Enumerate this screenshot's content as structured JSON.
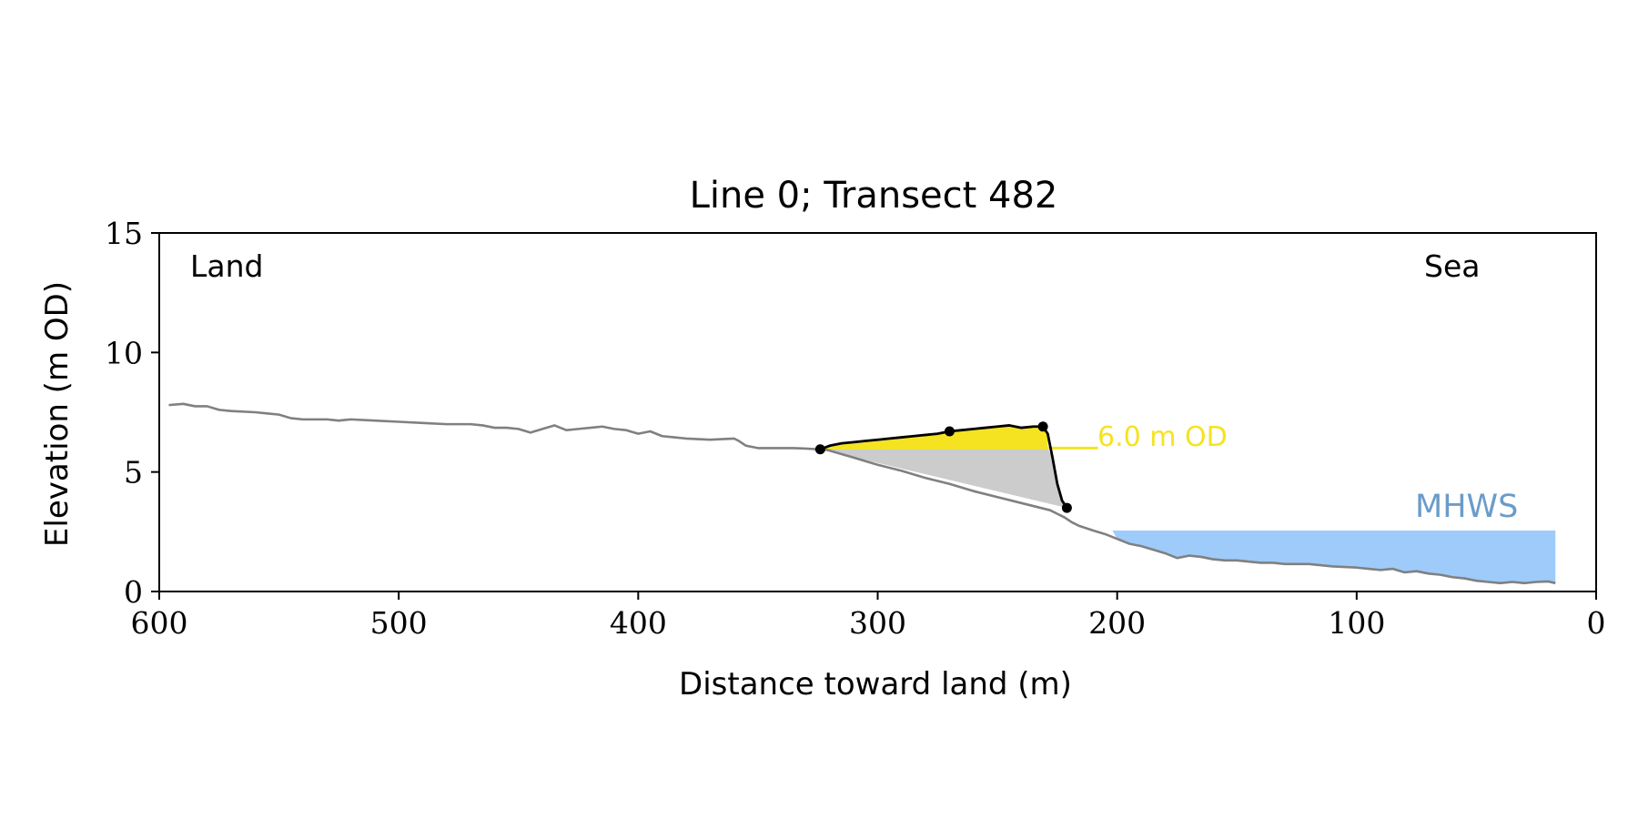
{
  "chart_data": {
    "type": "line",
    "title": "Line 0; Transect 482",
    "xlabel": "Distance toward land (m)",
    "ylabel": "Elevation (m OD)",
    "xlim": [
      600,
      0
    ],
    "ylim": [
      0,
      15
    ],
    "x_ticks": [
      600,
      500,
      400,
      300,
      200,
      100,
      0
    ],
    "y_ticks": [
      0,
      5,
      10,
      15
    ],
    "x_tick_labels": [
      "600",
      "500",
      "400",
      "300",
      "200",
      "100",
      "0"
    ],
    "y_tick_labels": [
      "0",
      "5",
      "10",
      "15"
    ],
    "grid": false,
    "corner_labels": {
      "left": "Land",
      "right": "Sea"
    },
    "threshold": {
      "label": "6.0 m OD",
      "elevation": 6.0,
      "x_start": 324,
      "x_end": 208,
      "color": "#f5e322"
    },
    "mhws": {
      "label": "MHWS",
      "elevation": 2.55,
      "x_start": 202,
      "x_end": 17,
      "fill_color": "#9ecbfa",
      "label_color": "#6a9cc9"
    },
    "profile": {
      "color": "#808080",
      "x": [
        596,
        590,
        585,
        580,
        575,
        570,
        560,
        555,
        550,
        545,
        540,
        530,
        525,
        520,
        510,
        500,
        490,
        480,
        470,
        465,
        460,
        455,
        450,
        445,
        440,
        435,
        430,
        425,
        420,
        415,
        410,
        405,
        400,
        395,
        390,
        385,
        380,
        370,
        360,
        358,
        355,
        350,
        345,
        340,
        335,
        330,
        325,
        321,
        310,
        300,
        290,
        280,
        270,
        260,
        250,
        240,
        232,
        228,
        225,
        222,
        219,
        216,
        213,
        210,
        205,
        200,
        195,
        190,
        185,
        180,
        175,
        170,
        165,
        160,
        155,
        150,
        145,
        140,
        135,
        130,
        120,
        110,
        100,
        95,
        90,
        85,
        80,
        75,
        70,
        65,
        60,
        55,
        50,
        45,
        40,
        35,
        30,
        25,
        20,
        17
      ],
      "y": [
        7.8,
        7.85,
        7.75,
        7.75,
        7.6,
        7.55,
        7.5,
        7.45,
        7.4,
        7.25,
        7.2,
        7.2,
        7.15,
        7.2,
        7.15,
        7.1,
        7.05,
        7.0,
        7.0,
        6.95,
        6.85,
        6.85,
        6.8,
        6.65,
        6.8,
        6.95,
        6.75,
        6.8,
        6.85,
        6.9,
        6.8,
        6.75,
        6.6,
        6.7,
        6.5,
        6.45,
        6.4,
        6.35,
        6.4,
        6.3,
        6.1,
        6.0,
        6.0,
        6.0,
        6.0,
        5.98,
        5.95,
        5.92,
        5.6,
        5.3,
        5.05,
        4.75,
        4.5,
        4.2,
        3.95,
        3.7,
        3.5,
        3.4,
        3.25,
        3.1,
        2.9,
        2.75,
        2.65,
        2.55,
        2.4,
        2.2,
        2.0,
        1.9,
        1.75,
        1.6,
        1.4,
        1.5,
        1.45,
        1.35,
        1.3,
        1.3,
        1.25,
        1.2,
        1.2,
        1.15,
        1.15,
        1.05,
        1.0,
        0.95,
        0.9,
        0.95,
        0.8,
        0.85,
        0.75,
        0.7,
        0.6,
        0.55,
        0.45,
        0.4,
        0.35,
        0.4,
        0.35,
        0.4,
        0.42,
        0.35
      ]
    },
    "cliff_profile": {
      "color": "#000000",
      "x": [
        324,
        320,
        315,
        310,
        305,
        300,
        295,
        290,
        285,
        280,
        275,
        270,
        265,
        260,
        255,
        250,
        245,
        240,
        235,
        231,
        229,
        227,
        225,
        223,
        221
      ],
      "y": [
        5.95,
        6.1,
        6.2,
        6.25,
        6.3,
        6.35,
        6.4,
        6.45,
        6.5,
        6.55,
        6.6,
        6.7,
        6.75,
        6.8,
        6.85,
        6.9,
        6.95,
        6.85,
        6.9,
        6.9,
        6.6,
        5.6,
        4.5,
        3.8,
        3.5
      ]
    },
    "cliff_points": {
      "x": [
        324,
        270,
        231,
        221
      ],
      "y": [
        5.95,
        6.7,
        6.9,
        3.5
      ]
    },
    "series": [
      {
        "name": "",
        "role": "area above threshold",
        "color": "#f5e322"
      },
      {
        "name": "",
        "role": "cliff volume wedge",
        "color": "#cccccc"
      }
    ]
  }
}
